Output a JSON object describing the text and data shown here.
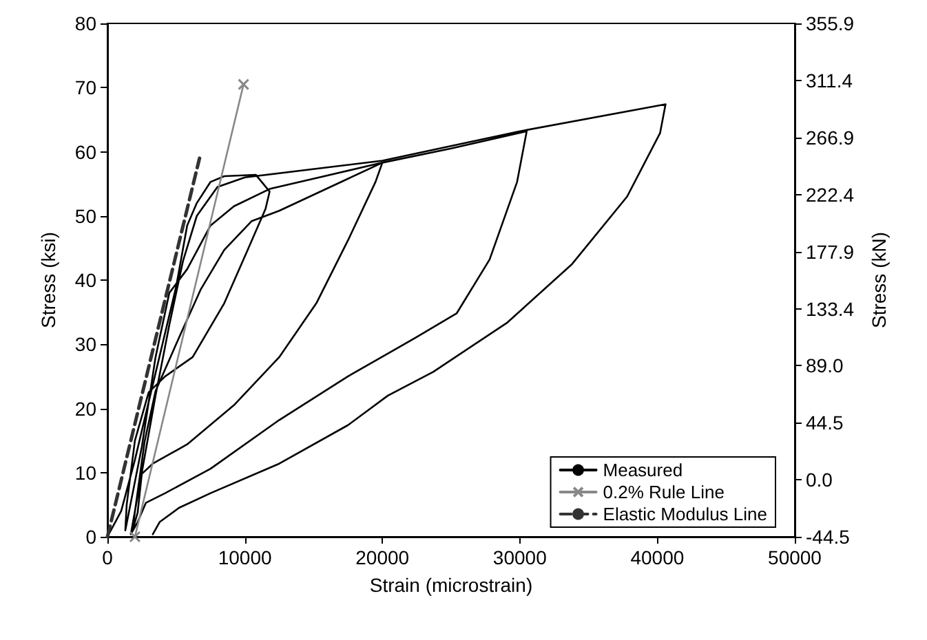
{
  "chart_data": {
    "type": "line",
    "xlabel": "Strain (microstrain)",
    "ylabel": "Stress (ksi)",
    "y2label": "Stress (kN)",
    "xlim": [
      0,
      50000
    ],
    "xticks": [
      0,
      10000,
      20000,
      30000,
      40000,
      50000
    ],
    "ylim": [
      0,
      80
    ],
    "yticks": [
      0,
      10,
      20,
      30,
      40,
      50,
      60,
      70,
      80
    ],
    "y2lim": [
      -44.5,
      355.9
    ],
    "y2ticks": [
      -44.5,
      {
        "value": 0,
        "label": "0.0"
      },
      44.5,
      {
        "value": 89,
        "label": "89.0"
      },
      133.4,
      177.9,
      222.4,
      266.9,
      311.4,
      355.9
    ],
    "grid": false,
    "legend": "bottom right",
    "series": [
      {
        "name": "Measured",
        "color": "#000000",
        "marker": "none",
        "line_style": "solid",
        "x": [
          0,
          1000,
          2000,
          3000,
          4000,
          5000,
          5800,
          6500,
          7500,
          8500,
          10800,
          11800,
          11500,
          10200,
          8500,
          6200,
          4200,
          3000,
          2000,
          1400,
          1300,
          2500,
          3500,
          4500,
          5800,
          7500,
          9200,
          11800,
          20000,
          19500,
          17500,
          15200,
          12500,
          9200,
          5800,
          3300,
          2500,
          2200,
          1800,
          2700,
          3500,
          5200,
          6800,
          8500,
          10500,
          12500,
          20000,
          25000,
          30500,
          29800,
          27800,
          25400,
          22400,
          17500,
          12500,
          7500,
          4200,
          2800,
          2200,
          1700,
          2500,
          3500,
          4500,
          5500,
          6500,
          8000,
          10000,
          20000,
          30000,
          40600,
          40200,
          37800,
          33800,
          29100,
          23700,
          20400,
          17500,
          12500,
          7500,
          5200,
          3800,
          3300
        ],
        "values": [
          0,
          4,
          12,
          21,
          30,
          39,
          48.5,
          52,
          55.3,
          56.2,
          56.4,
          53.8,
          51.1,
          44.7,
          36.4,
          28,
          25,
          22.5,
          15,
          5,
          1,
          14,
          28,
          38,
          41.7,
          48.5,
          51.5,
          54.2,
          58.3,
          55.3,
          46.2,
          36.4,
          28,
          20.5,
          14.4,
          11.4,
          9.8,
          3.8,
          0.8,
          14.8,
          22.7,
          31,
          38.6,
          44.7,
          49.2,
          50.8,
          58.3,
          60.5,
          63.2,
          55.3,
          43.2,
          34.8,
          31,
          25,
          18.2,
          10.6,
          6.8,
          5.3,
          2.3,
          0.4,
          10,
          22,
          33,
          43,
          50,
          54.5,
          56,
          58.6,
          63.2,
          67.4,
          62.9,
          53,
          42.5,
          33.4,
          25.7,
          22,
          17.4,
          11.4,
          6.8,
          4.5,
          2.3,
          0.4
        ]
      },
      {
        "name": "0.2% Rule Line",
        "color": "#888888",
        "marker": "cross",
        "line_style": "solid",
        "x": [
          2000,
          9900
        ],
        "values": [
          0,
          70.5
        ]
      },
      {
        "name": "Elastic Modulus Line",
        "color": "#333333",
        "marker": "none",
        "line_style": "dashed",
        "x": [
          0,
          6700
        ],
        "values": [
          0,
          59
        ]
      }
    ]
  }
}
